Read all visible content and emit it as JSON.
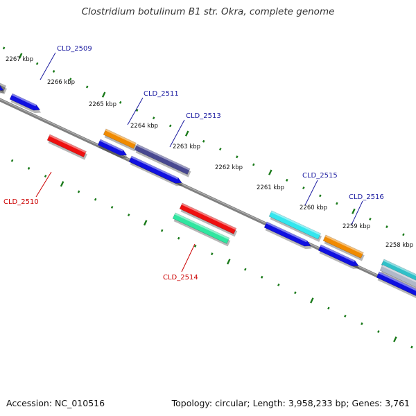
{
  "title": "Clostridium botulinum B1 str. Okra, complete genome",
  "footer": {
    "accession": "Accession: NC_010516",
    "summary": "Topology: circular; Length: 3,958,233 bp; Genes: 3,761"
  },
  "colors": {
    "backbone": "#808080",
    "tick": "#1a7a1a",
    "forward_label": "#1a1aa0",
    "reverse_label": "#cc0000",
    "cds_forward": "#1010e0",
    "cds_reverse": "#ee1010",
    "orange": "#f08a00",
    "slate": "#484890",
    "cyan": "#33e6ee",
    "seagreen": "#30e6a0",
    "gray": "#777777",
    "teal": "#30c0c8",
    "silver": "#b0b8c8"
  },
  "scale_labels": [
    "2267 kbp",
    "2266 kbp",
    "2265 kbp",
    "2264 kbp",
    "2263 kbp",
    "2262 kbp",
    "2261 kbp",
    "2260 kbp",
    "2259 kbp",
    "2258 kbp"
  ],
  "gene_labels": [
    {
      "text": "CLD_2509",
      "strand": "forward"
    },
    {
      "text": "CLD_2510",
      "strand": "reverse"
    },
    {
      "text": "CLD_2511",
      "strand": "forward"
    },
    {
      "text": "CLD_2513",
      "strand": "forward"
    },
    {
      "text": "CLD_2514",
      "strand": "reverse"
    },
    {
      "text": "CLD_2515",
      "strand": "forward"
    },
    {
      "text": "CLD_2516",
      "strand": "forward"
    }
  ]
}
